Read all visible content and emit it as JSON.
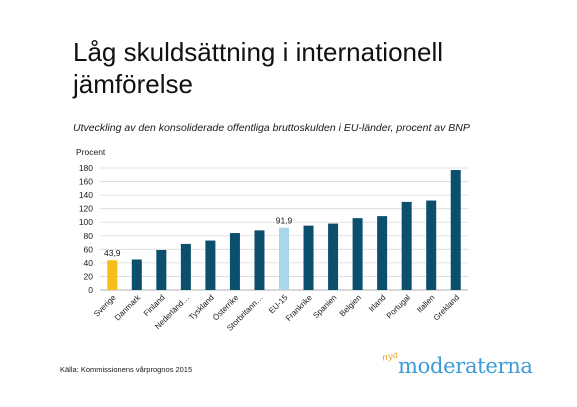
{
  "slide": {
    "title": "Låg skuldsättning i internationell jämförelse",
    "subtitle": "Utveckling av den konsoliderade offentliga bruttoskulden i EU-länder, procent av BNP",
    "source": "Källa: Kommissionens vårprognos 2015"
  },
  "logo": {
    "script": "nya",
    "word": "moderaterna",
    "colors": {
      "word": "#3b9bd6",
      "script": "#f29a1f"
    }
  },
  "chart_data": {
    "type": "bar",
    "title": "",
    "xlabel": "",
    "ylabel": "Procent",
    "ylim": [
      0,
      180
    ],
    "yticks": [
      0,
      20,
      40,
      60,
      80,
      100,
      120,
      140,
      160,
      180
    ],
    "grid": true,
    "legend": "none",
    "categories": [
      "Sverige",
      "Danmark",
      "Finland",
      "Nederländ…",
      "Tyskland",
      "Österrike",
      "Storbritann…",
      "EU-15",
      "Frankrike",
      "Spanien",
      "Belgien",
      "Irland",
      "Portugal",
      "Italien",
      "Grekland"
    ],
    "values": [
      43.9,
      45,
      59,
      68,
      73,
      84,
      88,
      91.9,
      95,
      98,
      106,
      109,
      130,
      132,
      177
    ],
    "data_labels": [
      {
        "index": 0,
        "text": "43,9"
      },
      {
        "index": 7,
        "text": "91,9"
      }
    ],
    "colors": [
      "#f5be1b",
      "#0b4f6c",
      "#0b4f6c",
      "#0b4f6c",
      "#0b4f6c",
      "#0b4f6c",
      "#0b4f6c",
      "#a9d6ea",
      "#0b4f6c",
      "#0b4f6c",
      "#0b4f6c",
      "#0b4f6c",
      "#0b4f6c",
      "#0b4f6c",
      "#0b4f6c"
    ]
  }
}
